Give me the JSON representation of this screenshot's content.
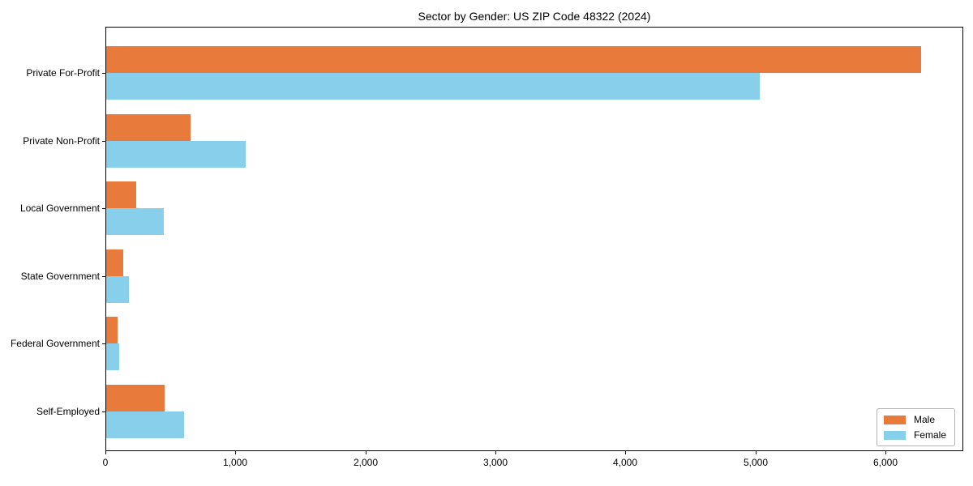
{
  "title": "Sector by Gender: US ZIP Code 48322 (2024)",
  "chart_data": {
    "type": "bar",
    "orientation": "horizontal",
    "title": "Sector by Gender: US ZIP Code 48322 (2024)",
    "categories": [
      "Private For-Profit",
      "Private Non-Profit",
      "Local Government",
      "State Government",
      "Federal Government",
      "Self-Employed"
    ],
    "series": [
      {
        "name": "Male",
        "color": "#e87a3c",
        "values": [
          6270,
          650,
          230,
          130,
          90,
          450
        ]
      },
      {
        "name": "Female",
        "color": "#87cfeb",
        "values": [
          5030,
          1070,
          440,
          175,
          100,
          600
        ]
      }
    ],
    "xlabel": "",
    "ylabel": "",
    "xlim": [
      0,
      6600
    ],
    "xticks": [
      0,
      1000,
      2000,
      3000,
      4000,
      5000,
      6000
    ],
    "xtick_labels": [
      "0",
      "1,000",
      "2,000",
      "3,000",
      "4,000",
      "5,000",
      "6,000"
    ],
    "grid": false,
    "legend_position": "lower right",
    "background_color": "#ffffff",
    "axis_color": "#000000"
  }
}
